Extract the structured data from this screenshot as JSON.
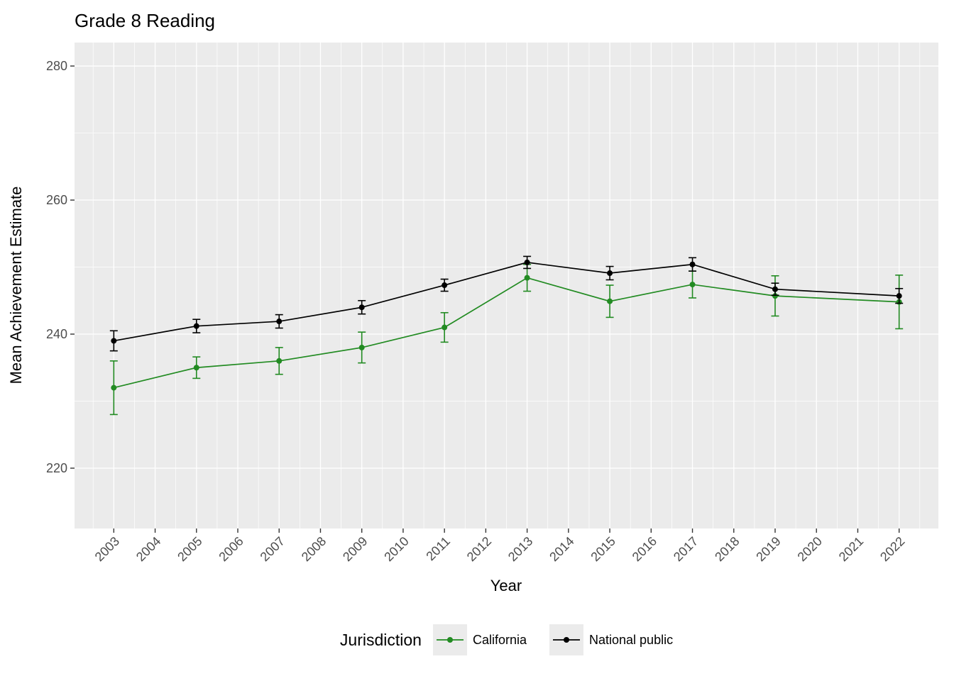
{
  "chart_data": {
    "type": "line",
    "title": "Grade 8 Reading",
    "xlabel": "Year",
    "ylabel": "Mean Achievement Estimate",
    "legend_title": "Jurisdiction",
    "legend_position": "bottom",
    "grid": true,
    "panel_bg": "#EBEBEB",
    "gridline_color": "#FFFFFF",
    "tick_label_color": "#4D4D4D",
    "x": [
      2003,
      2005,
      2007,
      2009,
      2011,
      2013,
      2015,
      2017,
      2019,
      2022
    ],
    "x_ticks": [
      2003,
      2004,
      2005,
      2006,
      2007,
      2008,
      2009,
      2010,
      2011,
      2012,
      2013,
      2014,
      2015,
      2016,
      2017,
      2018,
      2019,
      2020,
      2021,
      2022
    ],
    "y_ticks": [
      220,
      240,
      260,
      280
    ],
    "xlim": [
      2002.05,
      2022.95
    ],
    "ylim": [
      211,
      283.5
    ],
    "series": [
      {
        "name": "California",
        "color": "#228B22",
        "values": [
          232,
          235,
          236,
          238,
          241,
          248.4,
          244.9,
          247.4,
          245.7,
          244.8
        ],
        "errors": [
          4,
          1.6,
          2,
          2.3,
          2.2,
          2,
          2.4,
          2,
          3,
          4
        ]
      },
      {
        "name": "National public",
        "color": "#000000",
        "values": [
          239,
          241.2,
          241.9,
          244,
          247.3,
          250.7,
          249.1,
          250.4,
          246.7,
          245.7
        ],
        "errors": [
          1.5,
          1,
          1,
          1,
          0.9,
          0.9,
          1,
          1,
          0.9,
          1.1
        ]
      }
    ]
  }
}
